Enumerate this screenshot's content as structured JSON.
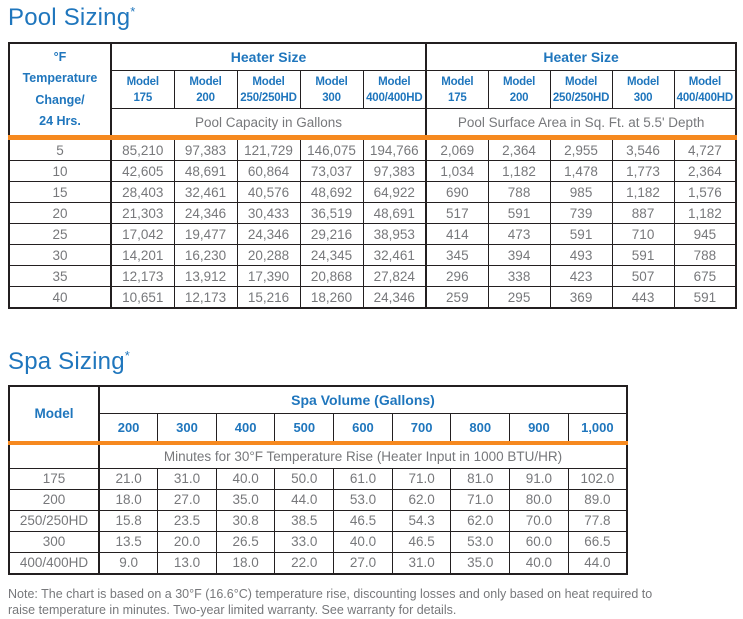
{
  "colors": {
    "blue": "#1f76bd",
    "orange": "#f6891f",
    "gray_text": "#77787b",
    "border": "#231f20"
  },
  "pool": {
    "title": "Pool Sizing",
    "asterisk": "*",
    "temp_header_lines": [
      "°F",
      "Temperature",
      "Change/",
      "24 Hrs."
    ],
    "model_word": "Model",
    "models": [
      "175",
      "200",
      "250/250HD",
      "300",
      "400/400HD"
    ],
    "left_group_label": "Heater Size",
    "right_group_label": "Heater Size",
    "left_sub_label": "Pool Capacity in Gallons",
    "right_sub_label": "Pool Surface Area in Sq. Ft. at 5.5' Depth",
    "rows": [
      {
        "temp": "5",
        "capacity": [
          "85,210",
          "97,383",
          "121,729",
          "146,075",
          "194,766"
        ],
        "area": [
          "2,069",
          "2,364",
          "2,955",
          "3,546",
          "4,727"
        ]
      },
      {
        "temp": "10",
        "capacity": [
          "42,605",
          "48,691",
          "60,864",
          "73,037",
          "97,383"
        ],
        "area": [
          "1,034",
          "1,182",
          "1,478",
          "1,773",
          "2,364"
        ]
      },
      {
        "temp": "15",
        "capacity": [
          "28,403",
          "32,461",
          "40,576",
          "48,692",
          "64,922"
        ],
        "area": [
          "690",
          "788",
          "985",
          "1,182",
          "1,576"
        ]
      },
      {
        "temp": "20",
        "capacity": [
          "21,303",
          "24,346",
          "30,433",
          "36,519",
          "48,691"
        ],
        "area": [
          "517",
          "591",
          "739",
          "887",
          "1,182"
        ]
      },
      {
        "temp": "25",
        "capacity": [
          "17,042",
          "19,477",
          "24,346",
          "29,216",
          "38,953"
        ],
        "area": [
          "414",
          "473",
          "591",
          "710",
          "945"
        ]
      },
      {
        "temp": "30",
        "capacity": [
          "14,201",
          "16,230",
          "20,288",
          "24,345",
          "32,461"
        ],
        "area": [
          "345",
          "394",
          "493",
          "591",
          "788"
        ]
      },
      {
        "temp": "35",
        "capacity": [
          "12,173",
          "13,912",
          "17,390",
          "20,868",
          "27,824"
        ],
        "area": [
          "296",
          "338",
          "423",
          "507",
          "675"
        ]
      },
      {
        "temp": "40",
        "capacity": [
          "10,651",
          "12,173",
          "15,216",
          "18,260",
          "24,346"
        ],
        "area": [
          "259",
          "295",
          "369",
          "443",
          "591"
        ]
      }
    ]
  },
  "spa": {
    "title": "Spa Sizing",
    "asterisk": "*",
    "model_header": "Model",
    "volume_group_label": "Spa Volume (Gallons)",
    "volumes": [
      "200",
      "300",
      "400",
      "500",
      "600",
      "700",
      "800",
      "900",
      "1,000"
    ],
    "sub_label": "Minutes for 30°F Temperature Rise (Heater Input in 1000 BTU/HR)",
    "rows": [
      {
        "model": "175",
        "minutes": [
          "21.0",
          "31.0",
          "40.0",
          "50.0",
          "61.0",
          "71.0",
          "81.0",
          "91.0",
          "102.0"
        ]
      },
      {
        "model": "200",
        "minutes": [
          "18.0",
          "27.0",
          "35.0",
          "44.0",
          "53.0",
          "62.0",
          "71.0",
          "80.0",
          "89.0"
        ]
      },
      {
        "model": "250/250HD",
        "minutes": [
          "15.8",
          "23.5",
          "30.8",
          "38.5",
          "46.5",
          "54.3",
          "62.0",
          "70.0",
          "77.8"
        ]
      },
      {
        "model": "300",
        "minutes": [
          "13.5",
          "20.0",
          "26.5",
          "33.0",
          "40.0",
          "46.5",
          "53.0",
          "60.0",
          "66.5"
        ]
      },
      {
        "model": "400/400HD",
        "minutes": [
          "9.0",
          "13.0",
          "18.0",
          "22.0",
          "27.0",
          "31.0",
          "35.0",
          "40.0",
          "44.0"
        ]
      }
    ]
  },
  "note": {
    "text": "Note: The chart is based on a 30°F (16.6°C) temperature rise, discounting losses and only based on heat required to raise temperature in minutes. Two-year limited warranty. See warranty for details."
  }
}
